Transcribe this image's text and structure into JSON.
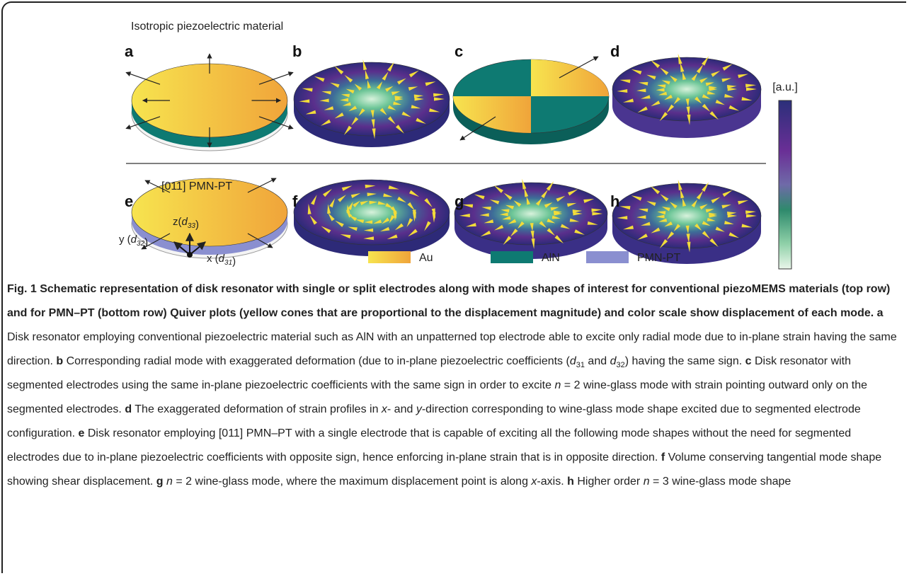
{
  "figure": {
    "row_labels": {
      "top": "Isotropic piezoelectric material",
      "bottom": "[011] PMN-PT"
    },
    "panels": [
      "a",
      "b",
      "c",
      "d",
      "e",
      "f",
      "g",
      "h"
    ],
    "colorbar_label": "[a.u.]",
    "axes": [
      [
        "z(",
        {
          "i": "d",
          "sub": "33"
        },
        ")"
      ],
      [
        "y (",
        {
          "i": "d",
          "sub": "32"
        },
        ")"
      ],
      [
        "x (",
        {
          "i": "d",
          "sub": "31"
        },
        ")"
      ]
    ],
    "legend": [
      "Au",
      "AlN",
      "PMN-PT"
    ]
  },
  "caption": {
    "title": "Fig. 1 Schematic representation of disk resonator with single or split electrodes along with mode shapes of interest for conventional piezoMEMS materials (top row) and for PMN–PT (bottom row) Quiver plots (yellow cones that are proportional to the displacement magnitude) and color scale show displacement of each mode.",
    "panels": [
      {
        "label": "a",
        "text": [
          "Disk resonator employing conventional piezoelectric material such as AlN with an unpatterned top electrode able to excite only radial mode due to in-plane strain having the same direction."
        ]
      },
      {
        "label": "b",
        "text": [
          "Corresponding radial mode with exaggerated deformation (due to in-plane piezoelectric coefficients (",
          {
            "i": "d",
            "sub": "31"
          },
          " and ",
          {
            "i": "d",
            "sub": "32"
          },
          ") having the same sign."
        ]
      },
      {
        "label": "c",
        "text": [
          "Disk resonator with segmented electrodes using the same in-plane piezoelectric coefficients with the same sign in order to excite ",
          {
            "i": "n"
          },
          " = 2 wine-glass mode with strain pointing outward only on the segmented electrodes."
        ]
      },
      {
        "label": "d",
        "text": [
          "The exaggerated deformation of strain profiles in ",
          {
            "i": "x"
          },
          "- and ",
          {
            "i": "y"
          },
          "-direction corresponding to wine-glass mode shape excited due to segmented electrode configuration."
        ]
      },
      {
        "label": "e",
        "text": [
          "Disk resonator employing [011] PMN–PT with a single electrode that is capable of exciting all the following mode shapes without the need for segmented electrodes due to in-plane piezoelectric coefficients with opposite sign, hence enforcing in-plane strain that is in opposite direction."
        ]
      },
      {
        "label": "f",
        "text": [
          "Volume conserving tangential mode shape showing shear displacement."
        ]
      },
      {
        "label": "g",
        "text": [
          {
            "i": "n"
          },
          " = 2 wine-glass mode, where the maximum displacement point is along ",
          {
            "i": "x"
          },
          "-axis."
        ]
      },
      {
        "label": "h",
        "text": [
          "Higher order ",
          {
            "i": "n"
          },
          " = 3 wine-glass mode shape"
        ]
      }
    ]
  }
}
